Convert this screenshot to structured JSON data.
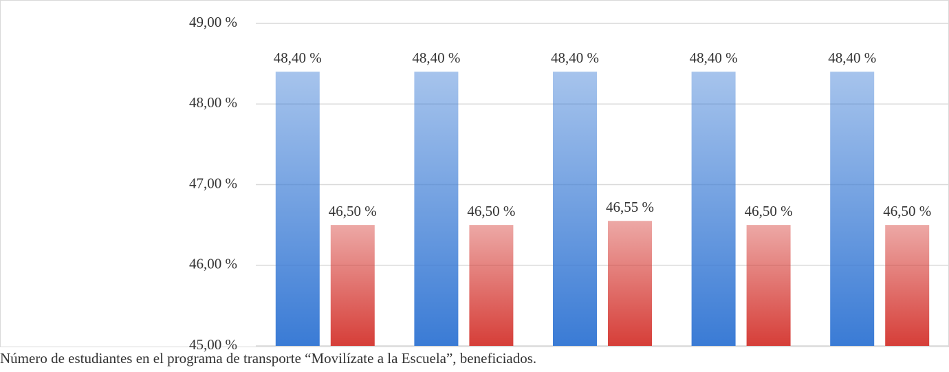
{
  "chart_data": {
    "type": "bar",
    "caption": "Número de estudiantes en el programa de transporte “Movilízate a la Escuela”, beneficiados.",
    "categories": [
      null,
      null,
      null,
      null,
      null
    ],
    "series": [
      {
        "color": "#3a7bd5",
        "values": [
          48.4,
          48.4,
          48.4,
          48.4,
          48.4
        ],
        "value_labels": [
          "48,40 %",
          "48,40 %",
          "48,40 %",
          "48,40 %",
          "48,40 %"
        ]
      },
      {
        "color": "#d63e38",
        "values": [
          46.5,
          46.5,
          46.55,
          46.5,
          46.5
        ],
        "value_labels": [
          "46,50 %",
          "46,50 %",
          "46,55 %",
          "46,50 %",
          "46,50 %"
        ]
      }
    ],
    "ylim": [
      45,
      49
    ],
    "yticks": [
      {
        "value": 45,
        "label": "45,00 %"
      },
      {
        "value": 46,
        "label": "46,00 %"
      },
      {
        "value": 47,
        "label": "47,00 %"
      },
      {
        "value": 48,
        "label": "48,00 %"
      },
      {
        "value": 49,
        "label": "49,00 %"
      }
    ],
    "grid": true
  }
}
